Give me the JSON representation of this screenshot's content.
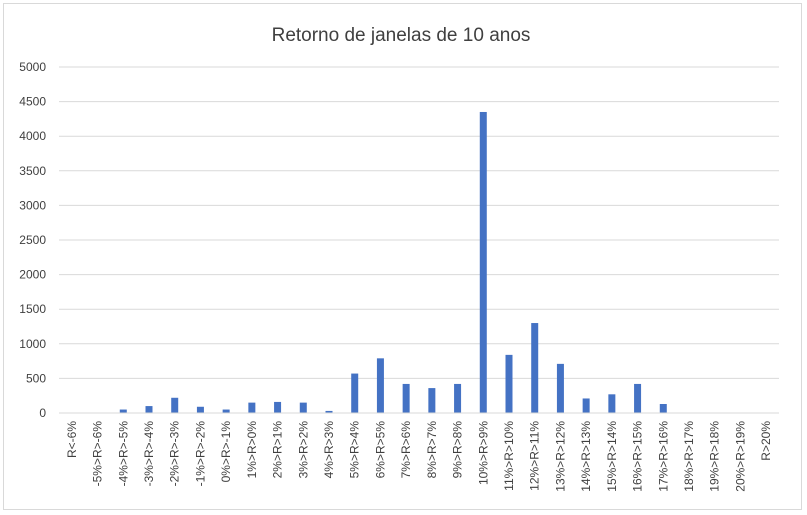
{
  "chart_data": {
    "type": "bar",
    "title": "Retorno de janelas de 10 anos",
    "xlabel": "",
    "ylabel": "",
    "ylim": [
      0,
      5000
    ],
    "yticks": [
      0,
      500,
      1000,
      1500,
      2000,
      2500,
      3000,
      3500,
      4000,
      4500,
      5000
    ],
    "grid": true,
    "legend": "none",
    "bar_color": "#4472c4",
    "grid_color": "#d9d9d9",
    "categories": [
      "R<-6%",
      "-5%>R>-6%",
      "-4%>R>-5%",
      "-3%>R>-4%",
      "-2%>R>-3%",
      "-1%>R>-2%",
      "0%>R>-1%",
      "1%>R>0%",
      "2%>R>1%",
      "3%>R>2%",
      "4%>R>3%",
      "5%>R>4%",
      "6%>R>5%",
      "7%>R>6%",
      "8%>R>7%",
      "9%>R>8%",
      "10%>R>9%",
      "11%>R>10%",
      "12%>R>11%",
      "13%>R>12%",
      "14%>R>13%",
      "15%>R>14%",
      "16%>R>15%",
      "17%>R>16%",
      "18%>R>17%",
      "19%>R>18%",
      "20%>R>19%",
      "R>20%"
    ],
    "values": [
      0,
      0,
      50,
      100,
      220,
      90,
      50,
      150,
      160,
      150,
      30,
      570,
      790,
      420,
      360,
      420,
      4350,
      840,
      1300,
      710,
      210,
      270,
      420,
      130,
      0,
      0,
      0,
      0
    ]
  }
}
